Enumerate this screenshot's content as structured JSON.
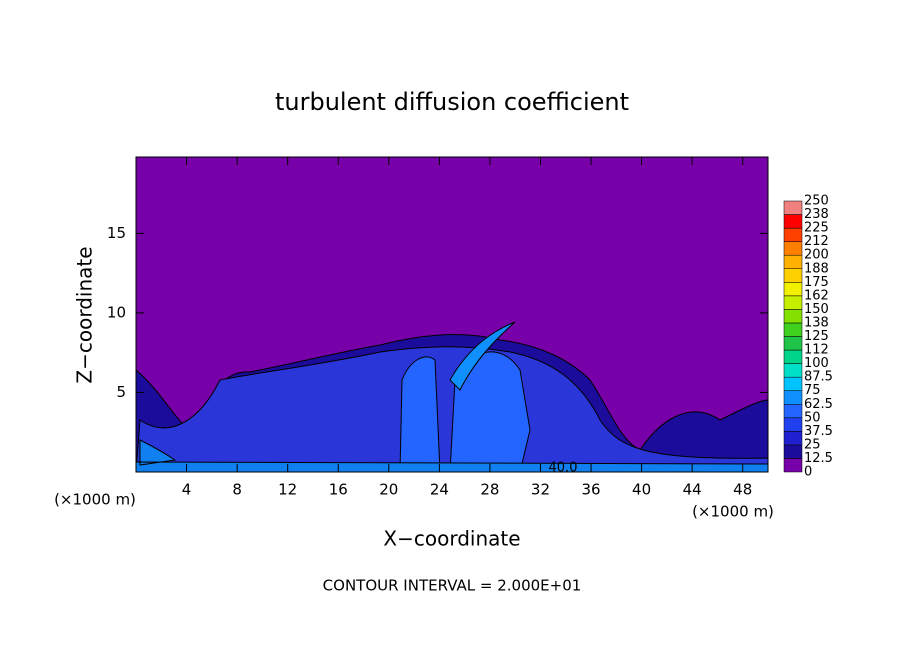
{
  "chart_data": {
    "type": "contour",
    "title": "turbulent diffusion coefficient",
    "xlabel": "X−coordinate",
    "ylabel": "Z−coordinate",
    "x_unit": "(×1000 m)",
    "x_unit_right": "(×1000 m)",
    "footer": "CONTOUR INTERVAL = 2.000E+01",
    "annotation": "40.0",
    "xlim": [
      0,
      50
    ],
    "xticks": [
      4,
      8,
      12,
      16,
      20,
      24,
      28,
      32,
      36,
      40,
      44,
      48
    ],
    "ylim": [
      0,
      19.8
    ],
    "yticks": [
      5,
      10,
      15
    ],
    "background_color": "#7800a8",
    "colorbar": {
      "ticks": [
        0,
        12.5,
        25,
        37.5,
        50,
        62.5,
        75,
        87.5,
        100,
        112,
        125,
        138,
        150,
        162,
        175,
        188,
        200,
        212,
        225,
        238,
        250
      ],
      "colors": [
        "#7800a8",
        "#1c0c9c",
        "#2020d0",
        "#2040f0",
        "#2464ff",
        "#1090ff",
        "#00c4ff",
        "#00e0c8",
        "#00d488",
        "#20c448",
        "#40d020",
        "#84e000",
        "#c4f000",
        "#f0f000",
        "#ffd000",
        "#ffb000",
        "#ff8000",
        "#ff4000",
        "#ff0000",
        "#f08080"
      ]
    }
  }
}
